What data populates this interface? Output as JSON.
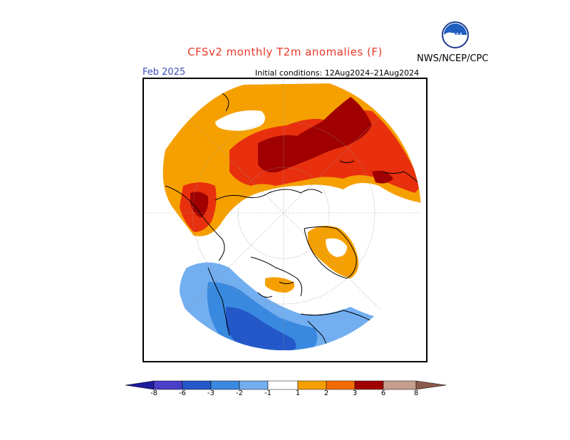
{
  "title": "CFSv2 monthly T2m anomalies (F)",
  "organization": "NWS/NCEP/CPC",
  "logo_text": "NOAA",
  "month": "Feb 2025",
  "initial_conditions": "Initial conditions: 12Aug2024–21Aug2024",
  "colorbar": {
    "tick_labels": [
      "-8",
      "-6",
      "-3",
      "-2",
      "-1",
      "1",
      "2",
      "3",
      "6",
      "8"
    ],
    "colors": [
      "#1c1c9e",
      "#4a3fc8",
      "#2458c9",
      "#3a89e0",
      "#72aef0",
      "#ffffff",
      "#f6a000",
      "#f46b00",
      "#e8300e",
      "#a00000",
      "#c79e8e",
      "#8a5a4a"
    ]
  },
  "anomaly_colors": {
    "plus_1_to_2": "#f6a000",
    "plus_2_to_3": "#f46b00",
    "plus_3_to_6": "#a00000",
    "plus_over_6": "#8a0000",
    "minus_1_to_2": "#72aef0",
    "minus_2_to_3": "#3a89e0",
    "minus_3_to_6": "#2458c9"
  }
}
